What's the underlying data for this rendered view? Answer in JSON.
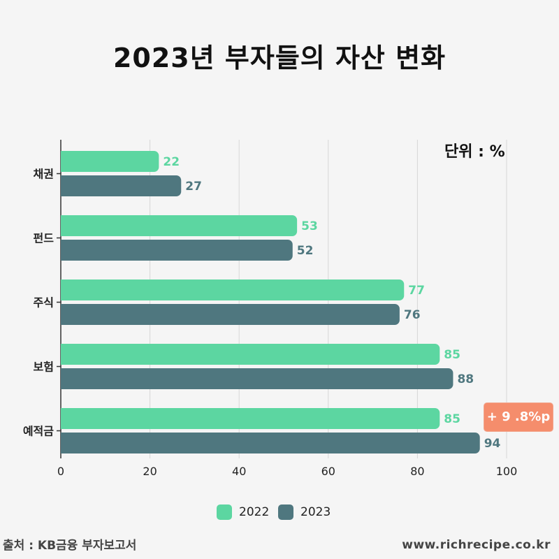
{
  "title": "2023년 부자들의 자산 변화",
  "unit_label": "단위 : %",
  "source": "출처 : KB금융 부자보고서",
  "website": "www.richrecipe.co.kr",
  "callout": "+ 9 .8%p",
  "colors": {
    "series_2022": "#5cd6a1",
    "series_2023": "#4f777f",
    "callout": "#f58d6c",
    "grid": "#d6d6d6"
  },
  "chart_data": {
    "type": "bar",
    "orientation": "horizontal",
    "categories": [
      "채권",
      "펀드",
      "주식",
      "보험",
      "예적금"
    ],
    "series": [
      {
        "name": "2022",
        "values": [
          22,
          53,
          77,
          85,
          85
        ]
      },
      {
        "name": "2023",
        "values": [
          27,
          52,
          76,
          88,
          94
        ]
      }
    ],
    "xlim": [
      0,
      100
    ],
    "xticks": [
      "0",
      "20",
      "40",
      "60",
      "80",
      "100"
    ],
    "grid": true,
    "legend_position": "bottom"
  }
}
